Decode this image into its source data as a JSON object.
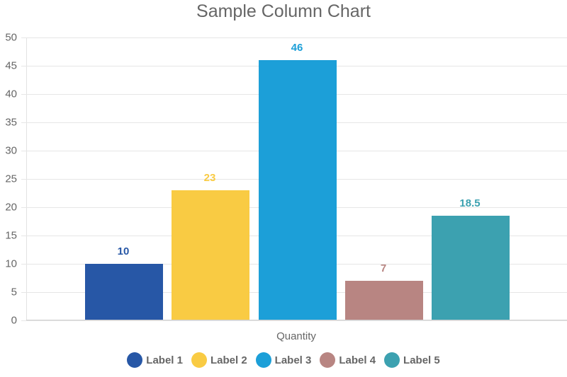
{
  "chart_data": {
    "type": "bar",
    "title": "Sample Column Chart",
    "xlabel": "Quantity",
    "ylabel": "",
    "categories": [
      "Quantity"
    ],
    "series": [
      {
        "name": "Label 1",
        "values": [
          10
        ],
        "color": "#2757a6"
      },
      {
        "name": "Label 2",
        "values": [
          23
        ],
        "color": "#f9cb43"
      },
      {
        "name": "Label 3",
        "values": [
          46
        ],
        "color": "#1c9fd8"
      },
      {
        "name": "Label 4",
        "values": [
          7
        ],
        "color": "#b88582"
      },
      {
        "name": "Label 5",
        "values": [
          18.5
        ],
        "color": "#3ca1b0"
      }
    ],
    "value_labels": [
      "10",
      "23",
      "46",
      "7",
      "18.5"
    ],
    "ylim": [
      0,
      50
    ],
    "yticks": [
      "0",
      "5",
      "10",
      "15",
      "20",
      "25",
      "30",
      "35",
      "40",
      "45",
      "50"
    ],
    "grid": true,
    "legend_position": "bottom"
  }
}
